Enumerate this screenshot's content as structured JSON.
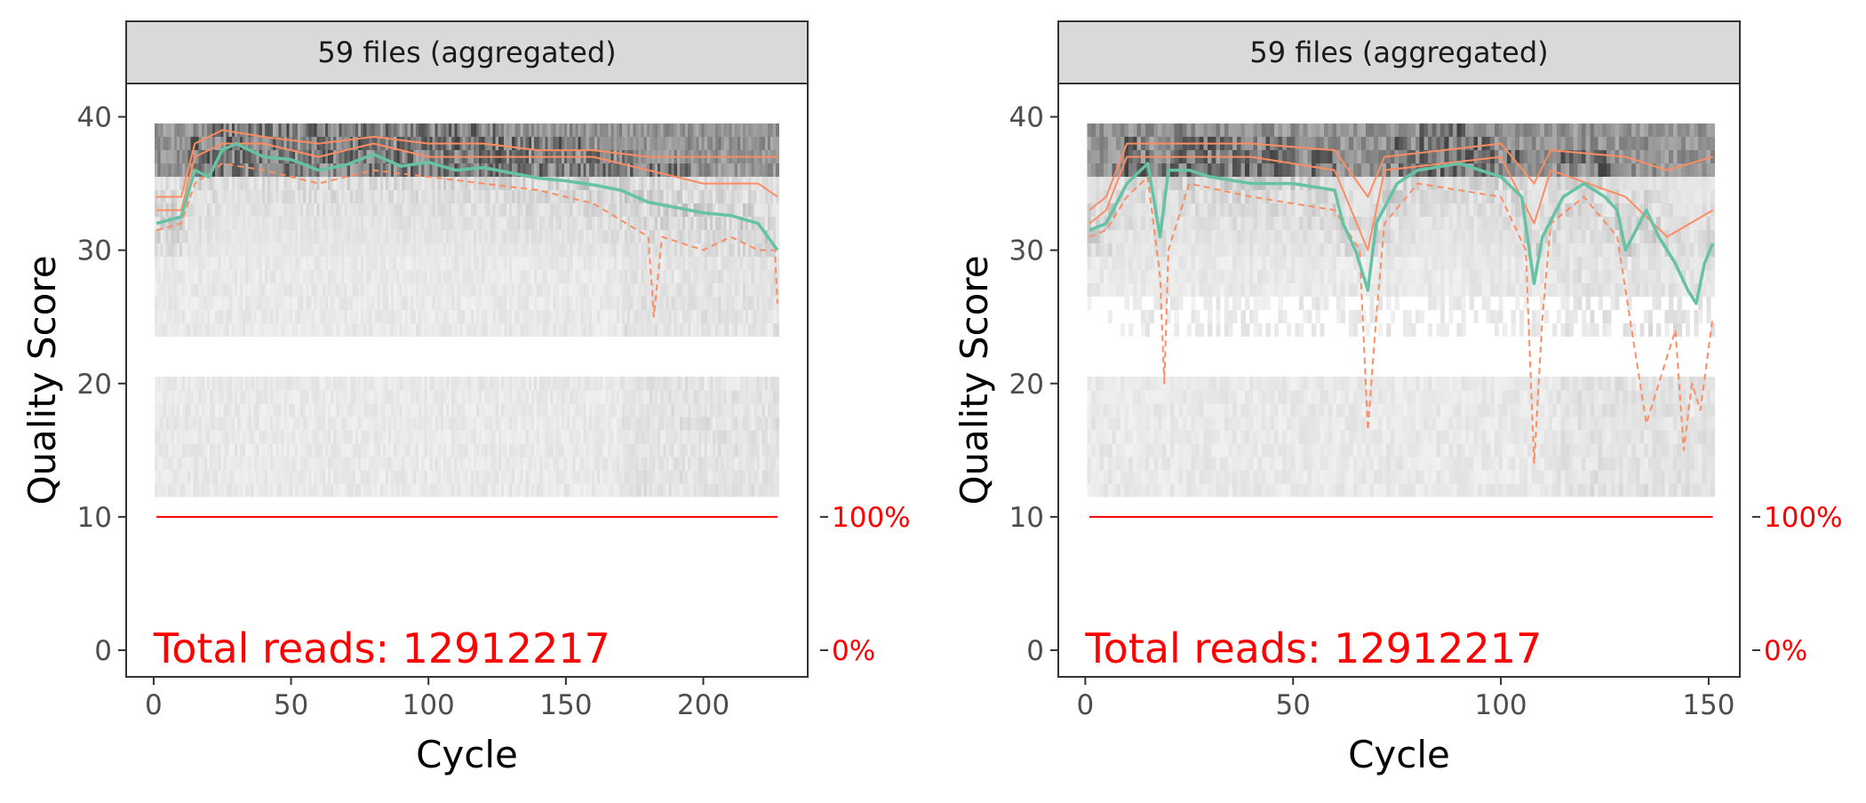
{
  "colors": {
    "strip_fill": "#d9d9d9",
    "panel_border": "#333333",
    "mean_line": "#66c2a5",
    "quartile_line": "#fc8d62",
    "cum_reads_line": "#ff0000",
    "axis_text": "#4d4d4d",
    "annotation_text": "#ff0000"
  },
  "chart_data": [
    {
      "type": "heatmap",
      "strip_title": "59 files (aggregated)",
      "xlabel": "Cycle",
      "ylabel": "Quality Score",
      "xlim": [
        -10,
        238
      ],
      "ylim": [
        -2,
        42.5
      ],
      "x_ticks": [
        0,
        50,
        100,
        150,
        200
      ],
      "y_ticks": [
        0,
        10,
        20,
        30,
        40
      ],
      "secondary_ticks": [
        "100%",
        "0%"
      ],
      "annotation": "Total reads: 12912217",
      "n_cycles": 227,
      "mean_quality": [
        [
          1,
          32
        ],
        [
          10,
          32.5
        ],
        [
          15,
          36
        ],
        [
          20,
          35.5
        ],
        [
          25,
          37.5
        ],
        [
          30,
          38
        ],
        [
          40,
          37
        ],
        [
          50,
          36.8
        ],
        [
          60,
          36
        ],
        [
          70,
          36.4
        ],
        [
          80,
          37.2
        ],
        [
          90,
          36.3
        ],
        [
          100,
          36.6
        ],
        [
          110,
          36
        ],
        [
          120,
          36.2
        ],
        [
          130,
          35.8
        ],
        [
          140,
          35.4
        ],
        [
          150,
          35.2
        ],
        [
          160,
          34.9
        ],
        [
          170,
          34.5
        ],
        [
          180,
          33.6
        ],
        [
          190,
          33.2
        ],
        [
          200,
          32.8
        ],
        [
          210,
          32.6
        ],
        [
          220,
          32
        ],
        [
          227,
          30
        ]
      ],
      "q25": [
        [
          1,
          31.5
        ],
        [
          10,
          32
        ],
        [
          15,
          35
        ],
        [
          25,
          36.5
        ],
        [
          40,
          36
        ],
        [
          60,
          35
        ],
        [
          80,
          36
        ],
        [
          100,
          35.5
        ],
        [
          120,
          35
        ],
        [
          140,
          34.5
        ],
        [
          160,
          33.5
        ],
        [
          180,
          31
        ],
        [
          182,
          25
        ],
        [
          185,
          31
        ],
        [
          200,
          30
        ],
        [
          210,
          31
        ],
        [
          220,
          30
        ],
        [
          226,
          30
        ],
        [
          227,
          26
        ]
      ],
      "median": [
        [
          1,
          33
        ],
        [
          10,
          33
        ],
        [
          15,
          37
        ],
        [
          25,
          38
        ],
        [
          40,
          38
        ],
        [
          60,
          37
        ],
        [
          80,
          38
        ],
        [
          100,
          37
        ],
        [
          120,
          37
        ],
        [
          140,
          37
        ],
        [
          160,
          37
        ],
        [
          180,
          36
        ],
        [
          200,
          35
        ],
        [
          220,
          35
        ],
        [
          227,
          34
        ]
      ],
      "q75": [
        [
          1,
          34
        ],
        [
          10,
          34
        ],
        [
          15,
          38
        ],
        [
          25,
          39
        ],
        [
          40,
          38.5
        ],
        [
          60,
          38
        ],
        [
          80,
          38.5
        ],
        [
          100,
          38
        ],
        [
          120,
          38
        ],
        [
          140,
          37.5
        ],
        [
          160,
          37.5
        ],
        [
          180,
          37
        ],
        [
          200,
          37
        ],
        [
          227,
          37
        ]
      ],
      "cumulative_reads_fraction": [
        [
          1,
          1
        ],
        [
          227,
          1
        ]
      ]
    },
    {
      "type": "heatmap",
      "strip_title": "59 files (aggregated)",
      "xlabel": "Cycle",
      "ylabel": "Quality Score",
      "xlim": [
        -6.5,
        157.5
      ],
      "ylim": [
        -2,
        42.5
      ],
      "x_ticks": [
        0,
        50,
        100,
        150
      ],
      "y_ticks": [
        0,
        10,
        20,
        30,
        40
      ],
      "secondary_ticks": [
        "100%",
        "0%"
      ],
      "annotation": "Total reads: 12912217",
      "n_cycles": 151,
      "mean_quality": [
        [
          1,
          31.5
        ],
        [
          5,
          32
        ],
        [
          10,
          35
        ],
        [
          15,
          36.5
        ],
        [
          18,
          31
        ],
        [
          20,
          36
        ],
        [
          25,
          36
        ],
        [
          30,
          35.5
        ],
        [
          40,
          35
        ],
        [
          50,
          35
        ],
        [
          60,
          34.5
        ],
        [
          62,
          32
        ],
        [
          65,
          30
        ],
        [
          68,
          27
        ],
        [
          70,
          32
        ],
        [
          75,
          35
        ],
        [
          80,
          36
        ],
        [
          90,
          36.5
        ],
        [
          100,
          35.5
        ],
        [
          105,
          34
        ],
        [
          108,
          27.5
        ],
        [
          110,
          31
        ],
        [
          115,
          34
        ],
        [
          120,
          35
        ],
        [
          125,
          34
        ],
        [
          128,
          33
        ],
        [
          130,
          30
        ],
        [
          135,
          33
        ],
        [
          138,
          31
        ],
        [
          142,
          29
        ],
        [
          145,
          27
        ],
        [
          147,
          26
        ],
        [
          149,
          29
        ],
        [
          151,
          30.5
        ]
      ],
      "q25": [
        [
          1,
          31
        ],
        [
          5,
          31.5
        ],
        [
          10,
          34
        ],
        [
          15,
          35.5
        ],
        [
          18,
          28
        ],
        [
          19,
          20
        ],
        [
          20,
          30
        ],
        [
          25,
          35
        ],
        [
          40,
          34
        ],
        [
          60,
          33
        ],
        [
          66,
          30
        ],
        [
          68,
          16.5
        ],
        [
          70,
          25
        ],
        [
          72,
          32
        ],
        [
          80,
          35
        ],
        [
          100,
          34
        ],
        [
          106,
          30
        ],
        [
          108,
          14
        ],
        [
          110,
          25
        ],
        [
          112,
          32
        ],
        [
          120,
          34
        ],
        [
          128,
          31
        ],
        [
          135,
          17
        ],
        [
          138,
          20
        ],
        [
          142,
          24
        ],
        [
          144,
          15
        ],
        [
          146,
          20
        ],
        [
          148,
          18
        ],
        [
          151,
          25
        ]
      ],
      "median": [
        [
          1,
          32
        ],
        [
          5,
          33
        ],
        [
          10,
          37
        ],
        [
          20,
          37
        ],
        [
          40,
          37
        ],
        [
          60,
          36
        ],
        [
          68,
          30
        ],
        [
          72,
          36
        ],
        [
          100,
          37
        ],
        [
          108,
          32
        ],
        [
          112,
          36
        ],
        [
          130,
          34
        ],
        [
          140,
          31
        ],
        [
          151,
          33
        ]
      ],
      "q75": [
        [
          1,
          33
        ],
        [
          5,
          34
        ],
        [
          10,
          38
        ],
        [
          20,
          38
        ],
        [
          40,
          38
        ],
        [
          60,
          37.5
        ],
        [
          68,
          34
        ],
        [
          72,
          37
        ],
        [
          100,
          38
        ],
        [
          108,
          35
        ],
        [
          112,
          37.5
        ],
        [
          130,
          37
        ],
        [
          140,
          36
        ],
        [
          151,
          37
        ]
      ],
      "cumulative_reads_fraction": [
        [
          1,
          1
        ],
        [
          151,
          1
        ]
      ]
    }
  ]
}
